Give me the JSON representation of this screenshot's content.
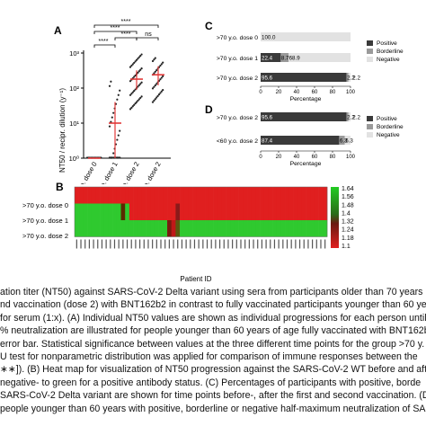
{
  "panels": {
    "A": {
      "label": "A",
      "ylabel": "NT50 / recipr. dilution (y⁻¹)",
      "y_ticks": [
        "10⁰",
        "10¹",
        "10²",
        "10³"
      ],
      "categories": [
        ">70 y.o. dose 0",
        ">70 y.o. dose 1",
        ">70 y.o. dose 2",
        "<60 y.o. dose 2"
      ],
      "sig_marks": [
        "****",
        "****",
        "****",
        "****",
        "ns"
      ],
      "medians": [
        1,
        10,
        180,
        240
      ]
    },
    "B": {
      "label": "B",
      "rows": [
        ">70 y.o. dose 0",
        ">70 y.o. dose 1",
        ">70 y.o. dose 2"
      ],
      "xlabel": "Patient ID",
      "scale_ticks": [
        "1.64",
        "1.56",
        "1.48",
        "1.4",
        "1.32",
        "1.24",
        "1.18",
        "1.1"
      ]
    },
    "C": {
      "label": "C",
      "xlabel": "Percentage",
      "x_ticks": [
        "0",
        "20",
        "40",
        "60",
        "80",
        "100"
      ],
      "legend": [
        "Positive",
        "Borderline",
        "Negative"
      ],
      "bars": [
        {
          "label": ">70 y.o. dose 0",
          "segments": [
            0,
            0,
            100.0
          ],
          "texts": [
            "100.0"
          ]
        },
        {
          "label": ">70 y.o. dose 1",
          "segments": [
            22.4,
            8.7,
            68.9
          ],
          "texts": [
            "22.4",
            "8.7",
            "68.9"
          ]
        },
        {
          "label": ">70 y.o. dose 2",
          "segments": [
            95.6,
            2.2,
            2.2
          ],
          "texts": [
            "95.6",
            "2.2",
            "2.2"
          ]
        }
      ]
    },
    "D": {
      "label": "D",
      "xlabel": "Percentage",
      "x_ticks": [
        "0",
        "20",
        "40",
        "60",
        "80",
        "100"
      ],
      "legend": [
        "Positive",
        "Borderline",
        "Negative"
      ],
      "bars": [
        {
          "label": ">70 y.o. dose 2",
          "segments": [
            95.6,
            2.2,
            2.2
          ],
          "texts": [
            "95.6",
            "2.2",
            "2.2"
          ]
        },
        {
          "label": "<60 y.o. dose 2",
          "segments": [
            87.4,
            6.3,
            6.3
          ],
          "texts": [
            "87.4",
            "6.3",
            "6.3"
          ]
        }
      ]
    }
  },
  "caption": {
    "lines": [
      "ation titer (NT50) against SARS-CoV-2 Delta variant using sera from participants older than 70 years (n",
      "nd vaccination (dose 2) with BNT162b2 in contrast to fully vaccinated participants younger than 60 years",
      "for serum (1:x). (A) Individual NT50 values are shown as individual progressions for each person until fu",
      "% neutralization are illustrated for people younger than 60 years of age fully vaccinated with BNT162b2",
      "error bar. Statistical significance between values at the three different time points for the group >70 y.",
      "U test for nonparametric distribution was applied for comparison of immune responses between the",
      "∗∗]). (B) Heat map for visualization of NT50 progression against the SARS-CoV-2 WT before and after",
      "negative- to green for a positive antibody status. (C) Percentages of participants with positive, borde",
      "SARS-CoV-2 Delta variant are shown for time points before-, after the first and second vaccination. (D)",
      "people younger than 60 years with positive, borderline or negative half-maximum neutralization of SAR"
    ]
  }
}
